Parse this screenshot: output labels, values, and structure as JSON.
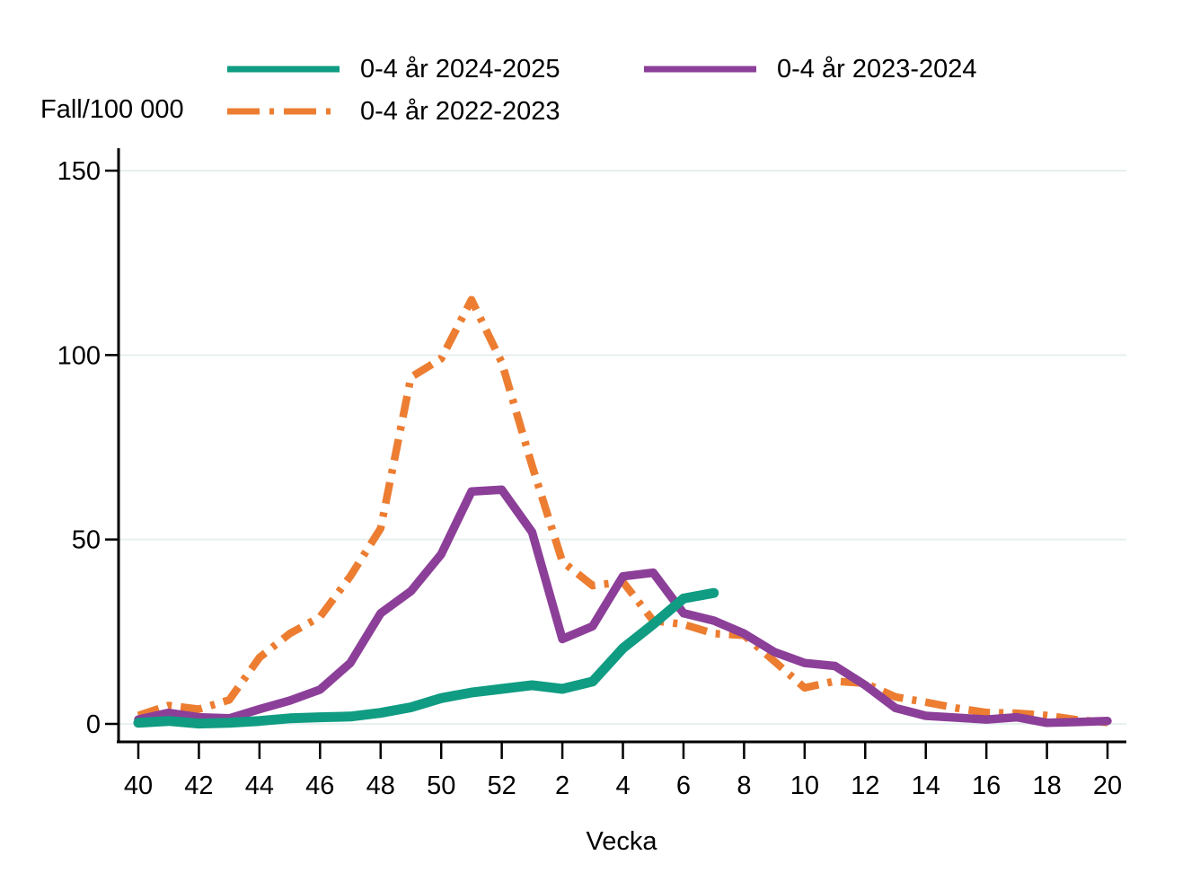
{
  "figure": {
    "background": "#ffffff",
    "axis_color": "#000000",
    "grid_color": "#e6f0ef",
    "text_color": "#000000"
  },
  "legend": {
    "items": [
      {
        "label": "0-4 år 2024-2025",
        "series_index": 0
      },
      {
        "label": "0-4 år 2023-2024",
        "series_index": 1
      },
      {
        "label": "0-4 år 2022-2023",
        "series_index": 2
      }
    ]
  },
  "chart_data": {
    "type": "line",
    "title": "",
    "xlabel": "Vecka",
    "ylabel": "Fall/100 000",
    "x_categories_weeks": [
      40,
      41,
      42,
      43,
      44,
      45,
      46,
      47,
      48,
      49,
      50,
      51,
      52,
      1,
      2,
      3,
      4,
      5,
      6,
      7,
      8,
      9,
      10,
      11,
      12,
      13,
      14,
      15,
      16,
      17,
      18,
      19,
      20
    ],
    "x_tick_labels": [
      "40",
      "42",
      "44",
      "46",
      "48",
      "50",
      "52",
      "2",
      "4",
      "6",
      "8",
      "10",
      "12",
      "14",
      "16",
      "18",
      "20"
    ],
    "x_tick_positions": [
      0,
      2,
      4,
      6,
      8,
      10,
      12,
      14,
      16,
      18,
      20,
      22,
      24,
      26,
      28,
      30,
      32
    ],
    "y_ticks": [
      0,
      50,
      100,
      150
    ],
    "ylim": [
      0,
      150
    ],
    "grid": "horizontal",
    "legend_position": "top",
    "series": [
      {
        "name": "0-4 år 2024-2025",
        "color": "#0f9c82",
        "dash": "solid",
        "stroke_width": 11,
        "values": [
          0.3,
          0.8,
          0.1,
          0.3,
          0.8,
          1.5,
          1.8,
          2,
          3,
          4.5,
          7,
          8.5,
          9.5,
          10.5,
          9.5,
          11.5,
          20.5,
          27,
          34,
          35.5,
          null,
          null,
          null,
          null,
          null,
          null,
          null,
          null,
          null,
          null,
          null,
          null,
          null
        ]
      },
      {
        "name": "0-4 år 2023-2024",
        "color": "#8c3f98",
        "dash": "solid",
        "stroke_width": 9.5,
        "values": [
          1.2,
          3,
          1.8,
          1.5,
          4,
          6.3,
          9.3,
          16.5,
          30,
          36,
          46,
          63,
          63.5,
          52,
          23,
          26.5,
          40,
          41,
          30,
          28,
          24.5,
          19.5,
          16.5,
          15.7,
          10.5,
          4.3,
          2.2,
          1.7,
          1.2,
          1.8,
          0.3,
          0.5,
          0.8
        ]
      },
      {
        "name": "0-4 år 2022-2023",
        "color": "#ec7d31",
        "dash": "dashdot",
        "stroke_width": 8.5,
        "values": [
          2.3,
          5,
          4,
          6.5,
          18,
          24.5,
          29,
          40,
          53,
          94,
          99,
          115,
          98,
          70,
          44,
          37.5,
          38.5,
          28,
          27,
          24.5,
          24,
          17,
          9.8,
          11.6,
          11,
          7.3,
          5.9,
          4.3,
          3.1,
          2.9,
          2.3,
          1.1,
          0.4
        ]
      }
    ]
  }
}
